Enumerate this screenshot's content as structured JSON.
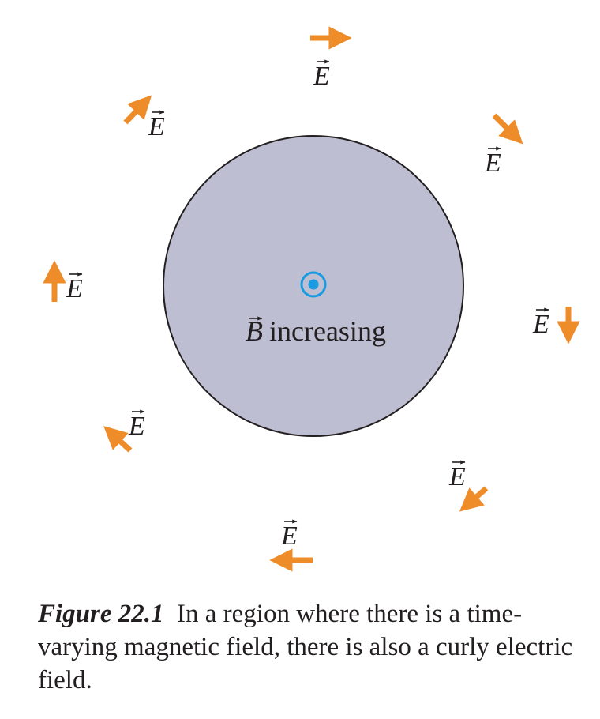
{
  "figure": {
    "field_label": "E",
    "center_label_symbol": "B",
    "center_label_text": "increasing",
    "colors": {
      "region_fill": "#bdbed2",
      "arrow": "#ef8c2a",
      "b_symbol": "#1a9ae0",
      "outline": "#231f20"
    },
    "icons": {
      "field_arrow": "arrow-icon",
      "b_field": "out-of-page-dot-icon"
    }
  },
  "caption": {
    "figure_number": "Figure 22.1",
    "text": "In a region where there is a time-varying magnetic field, there is also a curly electric field."
  }
}
